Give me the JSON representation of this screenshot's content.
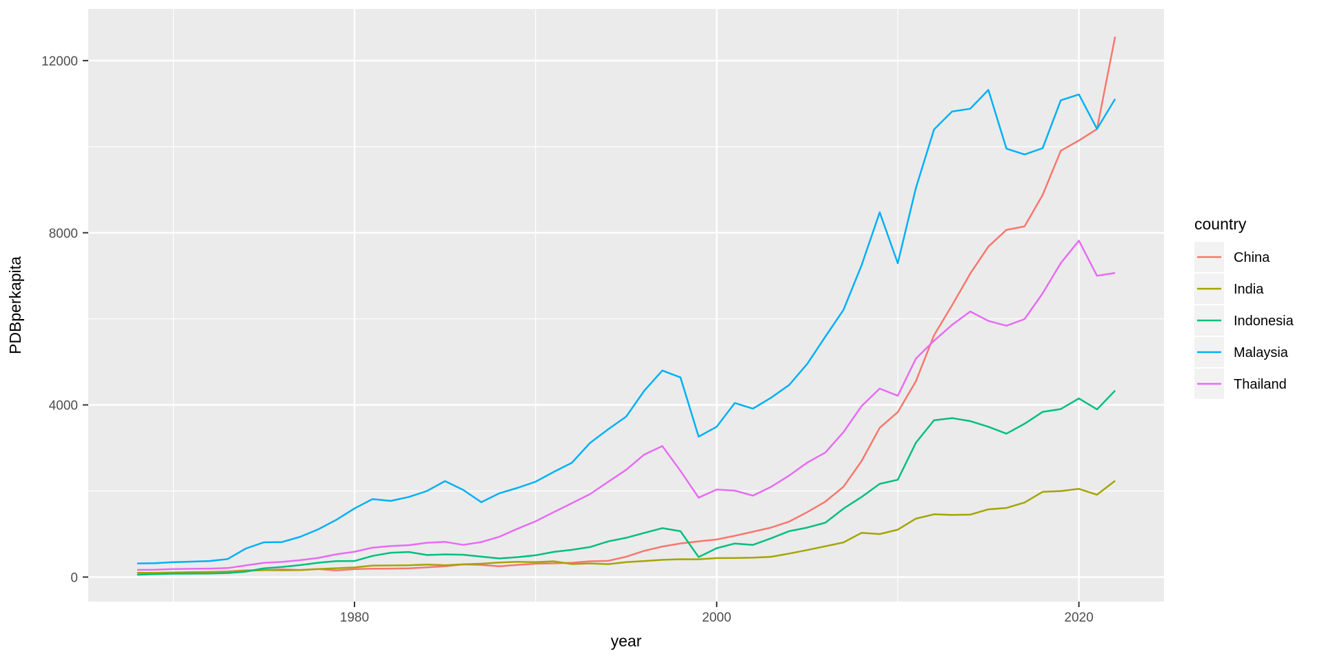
{
  "chart_data": {
    "type": "line",
    "title": "",
    "xlabel": "year",
    "ylabel": "PDBperkapita",
    "legend_title": "country",
    "legend_position": "right",
    "grid": true,
    "panel_bg": "#EBEBEB",
    "grid_color": "#FFFFFF",
    "legend_key_fill": "#F2F2F2",
    "axis_text_color": "#4D4D4D",
    "tick_mark_color": "#333333",
    "xlim": [
      1965.3,
      2024.7
    ],
    "ylim": [
      -570,
      13200
    ],
    "x_ticks": [
      1980,
      2000,
      2020
    ],
    "y_ticks": [
      0,
      4000,
      8000,
      12000
    ],
    "x_minor_ticks": [
      1970,
      1990,
      2010
    ],
    "y_minor_ticks": [
      2000,
      6000,
      10000
    ],
    "x": [
      1968,
      1969,
      1970,
      1971,
      1972,
      1973,
      1974,
      1975,
      1976,
      1977,
      1978,
      1979,
      1980,
      1981,
      1982,
      1983,
      1984,
      1985,
      1986,
      1987,
      1988,
      1989,
      1990,
      1991,
      1992,
      1993,
      1994,
      1995,
      1996,
      1997,
      1998,
      1999,
      2000,
      2001,
      2002,
      2003,
      2004,
      2005,
      2006,
      2007,
      2008,
      2009,
      2010,
      2011,
      2012,
      2013,
      2014,
      2015,
      2016,
      2017,
      2018,
      2019,
      2020,
      2021,
      2022
    ],
    "series": [
      {
        "name": "China",
        "color": "#F8766D",
        "values": [
          97,
          91,
          100,
          113,
          119,
          132,
          157,
          160,
          178,
          165,
          185,
          156,
          184,
          195,
          197,
          203,
          226,
          251,
          294,
          282,
          252,
          284,
          311,
          318,
          333,
          366,
          377,
          473,
          610,
          709,
          782,
          829,
          873,
          959,
          1053,
          1149,
          1289,
          1509,
          1753,
          2099,
          2694,
          3468,
          3832,
          4550,
          5618,
          6317,
          7051,
          7679,
          8067,
          8148,
          8879,
          9905,
          10144,
          10409,
          12556
        ]
      },
      {
        "name": "India",
        "color": "#A3A500",
        "values": [
          96,
          100,
          108,
          112,
          118,
          122,
          143,
          163,
          158,
          161,
          186,
          205,
          224,
          266,
          270,
          274,
          291,
          276,
          296,
          310,
          340,
          354,
          346,
          367,
          303,
          317,
          301,
          346,
          373,
          400,
          415,
          413,
          441,
          443,
          451,
          470,
          546,
          627,
          715,
          806,
          1028,
          999,
          1102,
          1358,
          1458,
          1444,
          1450,
          1574,
          1606,
          1733,
          1981,
          1998,
          2050,
          1913,
          2238
        ]
      },
      {
        "name": "Indonesia",
        "color": "#00BF7D",
        "values": [
          54,
          69,
          78,
          80,
          83,
          93,
          126,
          203,
          233,
          278,
          333,
          370,
          373,
          491,
          566,
          583,
          513,
          527,
          519,
          475,
          433,
          463,
          506,
          585,
          632,
          697,
          828,
          912,
          1026,
          1137,
          1064,
          464,
          671,
          780,
          748,
          900,
          1066,
          1150,
          1263,
          1590,
          1860,
          2167,
          2261,
          3122,
          3643,
          3694,
          3624,
          3492,
          3332,
          3563,
          3838,
          3903,
          4151,
          3896,
          4334
        ]
      },
      {
        "name": "Malaysia",
        "color": "#00B0F6",
        "values": [
          317,
          323,
          346,
          358,
          373,
          420,
          663,
          807,
          813,
          935,
          1110,
          1331,
          1594,
          1812,
          1770,
          1860,
          2000,
          2230,
          2026,
          1741,
          1947,
          2072,
          2216,
          2442,
          2654,
          3114,
          3432,
          3728,
          4329,
          4799,
          4638,
          3263,
          3492,
          4044,
          3913,
          4166,
          4462,
          4952,
          5587,
          6209,
          7243,
          8475,
          7292,
          9041,
          10399,
          10817,
          10882,
          11319,
          9955,
          9818,
          9965,
          11077,
          11213,
          10412,
          11109
        ]
      },
      {
        "name": "Thailand",
        "color": "#E76BF3",
        "values": [
          167,
          169,
          185,
          192,
          197,
          210,
          270,
          332,
          352,
          392,
          445,
          529,
          590,
          683,
          721,
          742,
          798,
          818,
          748,
          813,
          937,
          1123,
          1295,
          1509,
          1716,
          1927,
          2209,
          2491,
          2847,
          3044,
          2468,
          1845,
          2033,
          2008,
          1893,
          2096,
          2359,
          2660,
          2894,
          3369,
          3973,
          4379,
          4213,
          5076,
          5492,
          5861,
          6171,
          5952,
          5840,
          5995,
          6593,
          7295,
          7817,
          7001,
          7066
        ]
      }
    ]
  }
}
